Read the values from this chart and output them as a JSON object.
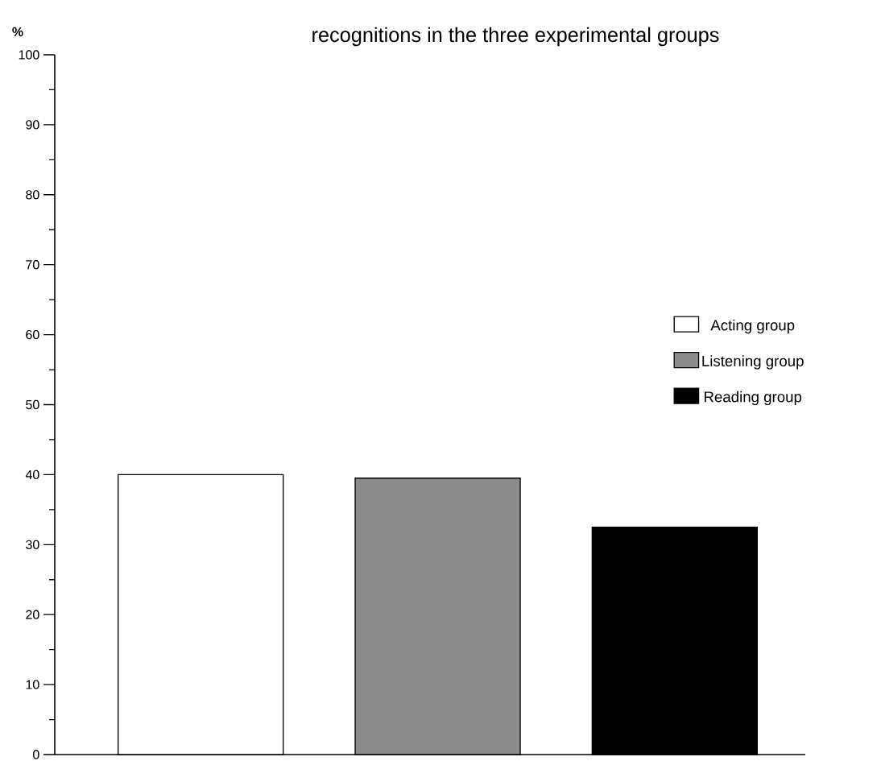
{
  "chart_data": {
    "type": "bar",
    "title": "recognitions in the three experimental groups",
    "ylabel": "%",
    "categories": [
      null,
      null,
      null
    ],
    "series": [
      {
        "name": "Acting group",
        "color": "#ffffff",
        "values": [
          40,
          null,
          null
        ]
      },
      {
        "name": "Listening group",
        "color": "#8c8c8c",
        "values": [
          null,
          39.5,
          null
        ]
      },
      {
        "name": "Reading group",
        "color": "#000000",
        "values": [
          null,
          null,
          32.5
        ]
      }
    ],
    "ylim": [
      0,
      100
    ],
    "yticks": [
      0,
      10,
      20,
      30,
      40,
      50,
      60,
      70,
      80,
      90,
      100
    ],
    "grid": false,
    "legend": "right"
  }
}
